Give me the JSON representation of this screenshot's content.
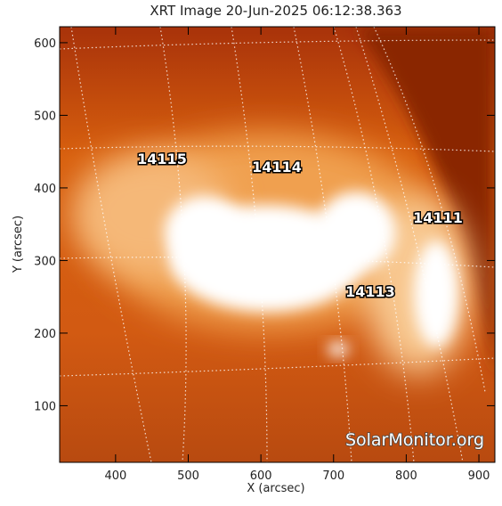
{
  "chart_data": {
    "type": "image",
    "title": "XRT Image 20-Jun-2025 06:12:38.363",
    "xlabel": "X (arcsec)",
    "ylabel": "Y (arcsec)",
    "xlim": [
      323,
      922
    ],
    "ylim": [
      22,
      622
    ],
    "xticks": [
      400,
      500,
      600,
      700,
      800,
      900
    ],
    "yticks": [
      100,
      200,
      300,
      400,
      500,
      600
    ],
    "annotations": [
      "14115",
      "14114",
      "14111",
      "14113"
    ],
    "watermark": "SolarMonitor.org"
  }
}
